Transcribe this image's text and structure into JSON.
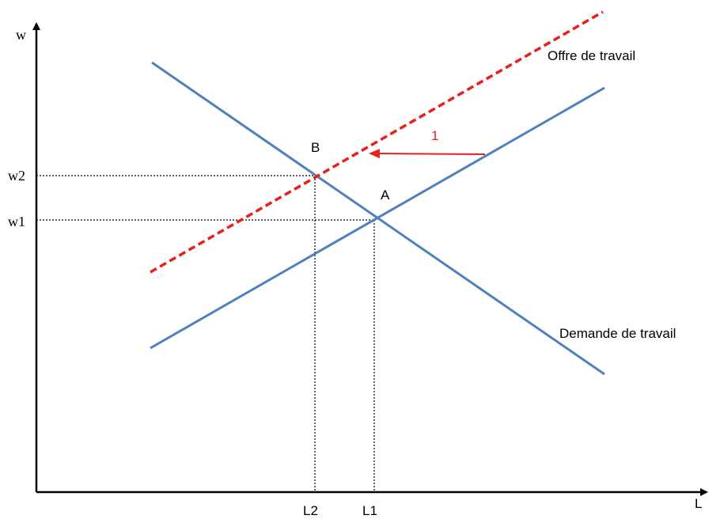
{
  "axes": {
    "y_label": "w",
    "x_label": "L",
    "y_ticks": [
      "w2",
      "w1"
    ],
    "x_ticks": [
      "L2",
      "L1"
    ]
  },
  "curves": {
    "supply_original": {
      "color": "#4f81bd"
    },
    "supply_shifted": {
      "label": "Offre de travail",
      "color": "#e8201a",
      "style": "dashed"
    },
    "demand": {
      "label": "Demande de travail",
      "color": "#4f81bd"
    }
  },
  "points": {
    "A": "A",
    "B": "B"
  },
  "shift_arrow": {
    "label": "1",
    "color": "#e8201a",
    "direction": "left"
  },
  "guides": {
    "style": "dotted",
    "color": "#000000"
  }
}
